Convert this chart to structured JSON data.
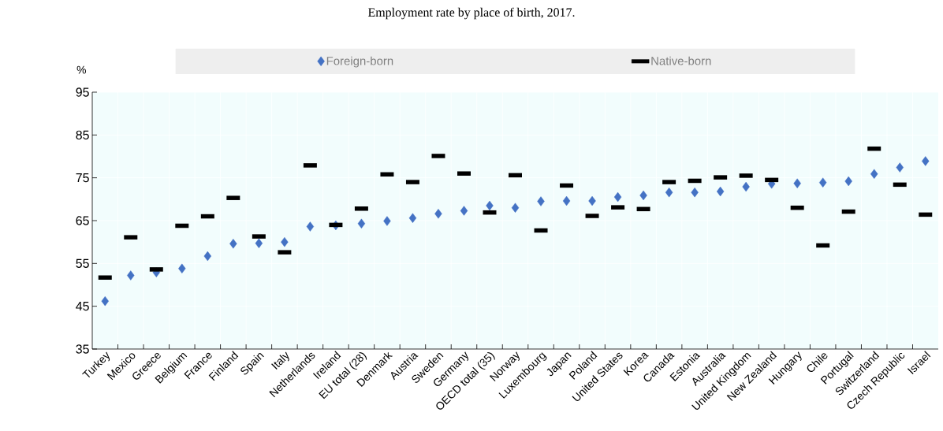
{
  "chart_data": {
    "type": "scatter",
    "title": "Employment rate by place of birth, 2017.",
    "ylabel": "%",
    "categories": [
      "Turkey",
      "Mexico",
      "Greece",
      "Belgium",
      "France",
      "Finland",
      "Spain",
      "Italy",
      "Netherlands",
      "Ireland",
      "EU total (28)",
      "Denmark",
      "Austria",
      "Sweden",
      "Germany",
      "OECD total (35)",
      "Norway",
      "Luxembourg",
      "Japan",
      "Poland",
      "United States",
      "Korea",
      "Canada",
      "Estonia",
      "Australia",
      "United Kingdom",
      "New Zealand",
      "Hungary",
      "Chile",
      "Portugal",
      "Switzerland",
      "Czech Republic",
      "Israel"
    ],
    "series": [
      {
        "name": "Foreign-born",
        "color": "#4472c4",
        "marker": "diamond",
        "values": [
          46.2,
          52.2,
          52.9,
          53.8,
          56.7,
          59.6,
          59.7,
          60.0,
          63.6,
          63.9,
          64.3,
          64.9,
          65.6,
          66.6,
          67.3,
          68.5,
          68.0,
          69.5,
          69.6,
          69.6,
          70.5,
          70.9,
          71.6,
          71.6,
          71.8,
          72.9,
          73.6,
          73.7,
          73.9,
          74.2,
          75.9,
          77.4,
          78.9
        ]
      },
      {
        "name": "Native-born",
        "color": "#000000",
        "values": [
          51.7,
          61.1,
          53.6,
          63.8,
          66.0,
          70.3,
          61.3,
          57.6,
          77.9,
          64.0,
          67.8,
          75.8,
          74.0,
          80.1,
          76.0,
          66.9,
          75.6,
          62.7,
          73.2,
          66.1,
          68.1,
          67.7,
          74.0,
          74.3,
          75.1,
          75.5,
          74.5,
          68.0,
          59.2,
          67.1,
          81.8,
          73.4,
          66.4
        ]
      }
    ],
    "ylim": [
      35,
      95
    ],
    "yticks": [
      35,
      45,
      55,
      65,
      75,
      85,
      95
    ],
    "grid": true,
    "legend": "top"
  }
}
